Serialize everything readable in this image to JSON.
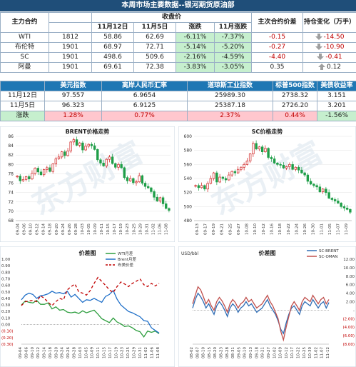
{
  "title": "本周市场主要数据--银河期货原油部",
  "table1": {
    "h_contract": "主力合约",
    "h_close": "收盘价",
    "h_d1": "11月12日",
    "h_d2": "11月5日",
    "h_chg": "涨跌",
    "h_mchg": "11月涨跌",
    "h_spread": "主次合约价差",
    "h_pos": "持仓变化（万手）",
    "rows": [
      {
        "name": "WTI",
        "month": "1812",
        "p1": "58.86",
        "p2": "62.69",
        "chg": "-6.11%",
        "mchg": "-7.37%",
        "spread": "-0.15",
        "pos": "-14.50",
        "dir": "down"
      },
      {
        "name": "布伦特",
        "month": "1901",
        "p1": "68.97",
        "p2": "72.71",
        "chg": "-5.14%",
        "mchg": "-5.20%",
        "spread": "-0.27",
        "pos": "-10.90",
        "dir": "down"
      },
      {
        "name": "SC",
        "month": "1901",
        "p1": "498.6",
        "p2": "509.6",
        "chg": "-2.16%",
        "mchg": "-4.59%",
        "spread": "-4.40",
        "pos": "-0.41",
        "dir": "down"
      },
      {
        "name": "阿曼",
        "month": "1901",
        "p1": "69.61",
        "p2": "72.38",
        "chg": "-3.83%",
        "mchg": "-3.05%",
        "spread": "0.35",
        "pos": "0.12",
        "dir": "up"
      }
    ]
  },
  "table2": {
    "headers": [
      "美元指数",
      "离岸人民币汇率",
      "道琼斯工业指数",
      "标普500指数",
      "美债收益率"
    ],
    "rows": [
      {
        "date": "11月12日",
        "v": [
          "97.557",
          "6.9654",
          "25989.30",
          "2738.32",
          "3.151"
        ]
      },
      {
        "date": "11月5日",
        "v": [
          "96.323",
          "6.9125",
          "25387.18",
          "2726.20",
          "3.201"
        ]
      },
      {
        "date": "涨跌",
        "v": [
          "1.28%",
          "0.77%",
          "2.37%",
          "0.44%",
          "-1.56%"
        ]
      }
    ]
  },
  "colors": {
    "up": "#c00000",
    "down": "#2e8b57",
    "header": "#1f4e79",
    "blue": "#1f77b4"
  },
  "chart_data": [
    {
      "type": "candlestick",
      "title": "BRENT价格走势",
      "ylim": [
        68,
        86
      ],
      "yticks": [
        68,
        70,
        72,
        74,
        76,
        78,
        80,
        82,
        84,
        86
      ],
      "xticks": [
        "09-04",
        "09-06",
        "09-10",
        "09-12",
        "09-14",
        "09-18",
        "09-20",
        "09-24",
        "09-26",
        "09-28",
        "10-03",
        "10-05",
        "10-09",
        "10-11",
        "10-15",
        "10-17",
        "10-19",
        "10-23",
        "10-25",
        "10-29",
        "10-31",
        "11-02",
        "11-06",
        "11-08"
      ],
      "close": [
        77.5,
        76.5,
        76.8,
        77.4,
        76.9,
        78.1,
        79.2,
        78.4,
        77.8,
        78.9,
        79.3,
        78.5,
        80.1,
        81.2,
        81.6,
        82.7,
        81.9,
        82.9,
        84.8,
        85.3,
        84.1,
        84.6,
        83.1,
        83.9,
        84.3,
        84.0,
        83.2,
        81.0,
        80.3,
        79.7,
        81.1,
        81.6,
        80.2,
        79.4,
        80.0,
        79.3,
        77.2,
        76.5,
        77.0,
        76.1,
        76.3,
        77.6,
        76.0,
        75.3,
        75.0,
        74.2,
        73.0,
        72.2,
        72.9,
        71.6,
        70.6,
        70.2
      ],
      "watermark": "东方财富 DONGFANGCAIFU"
    },
    {
      "type": "candlestick",
      "title": "SC价格走势",
      "ylim": [
        480,
        600
      ],
      "yticks": [
        480,
        500,
        520,
        540,
        560,
        580,
        600
      ],
      "xticks": [
        "09-13",
        "09-17",
        "09-19",
        "09-21",
        "09-25",
        "09-27",
        "10-08",
        "10-10",
        "10-12",
        "10-16",
        "10-18",
        "10-22",
        "10-24",
        "10-26",
        "10-30",
        "11-01",
        "11-05",
        "11-07",
        "11-09"
      ],
      "close": [
        530,
        527,
        530,
        525,
        533,
        540,
        548,
        535,
        542,
        540,
        538,
        545,
        550,
        548,
        553,
        556,
        560,
        565,
        575,
        590,
        582,
        585,
        578,
        583,
        570,
        568,
        562,
        560,
        559,
        555,
        557,
        560,
        553,
        556,
        552,
        548,
        545,
        536,
        532,
        530,
        528,
        521,
        525,
        520,
        512,
        510,
        508,
        505,
        500,
        498,
        496,
        492
      ],
      "watermark": "东方财富 DONGFANGCAIFU"
    },
    {
      "type": "line",
      "title": "价差图",
      "ylim": [
        -0.3,
        1.0
      ],
      "yticks": [
        "1.00",
        "0.90",
        "0.80",
        "0.70",
        "0.60",
        "0.50",
        "0.40",
        "0.30",
        "0.20",
        "0.10",
        "0.00",
        "(0.10)",
        "(0.20)",
        "(0.30)"
      ],
      "xticks": [
        "09-04",
        "09-06",
        "09-10",
        "09-12",
        "09-14",
        "09-18",
        "09-20",
        "09-24",
        "09-26",
        "09-28",
        "10-03",
        "10-05",
        "10-09",
        "10-11",
        "10-15",
        "10-17",
        "10-19",
        "10-23",
        "10-25",
        "10-29",
        "10-31",
        "11-02",
        "11-06",
        "11-08"
      ],
      "series": [
        {
          "name": "WTI月差",
          "color": "#2e9e3f",
          "dash": "",
          "values": [
            0.3,
            0.36,
            0.34,
            0.33,
            0.37,
            0.31,
            0.31,
            0.33,
            0.24,
            0.27,
            0.22,
            0.23,
            0.19,
            0.18,
            0.19,
            0.17,
            0.21,
            0.18,
            0.2,
            0.22,
            0.16,
            0.09,
            0.06,
            0.03,
            0.1,
            0.04,
            0.01,
            -0.03,
            -0.02,
            -0.05,
            -0.09,
            -0.11,
            -0.19,
            -0.1,
            -0.12,
            -0.1,
            -0.14
          ]
        },
        {
          "name": "Brent月差",
          "color": "#1f6fc8",
          "dash": "",
          "values": [
            0.38,
            0.45,
            0.48,
            0.46,
            0.4,
            0.44,
            0.45,
            0.47,
            0.51,
            0.48,
            0.49,
            0.47,
            0.51,
            0.42,
            0.46,
            0.4,
            0.34,
            0.38,
            0.37,
            0.4,
            0.37,
            0.34,
            0.43,
            0.46,
            0.52,
            0.39,
            0.3,
            0.25,
            0.2,
            0.18,
            0.15,
            0.12,
            0.06,
            0.05,
            -0.05,
            -0.09,
            -0.13
          ]
        },
        {
          "name": "布美价差",
          "color": "#c00000",
          "dash": "4,3",
          "values": [
            0.29,
            0.35,
            0.36,
            0.37,
            0.35,
            0.44,
            0.4,
            0.34,
            0.29,
            0.35,
            0.4,
            0.38,
            0.53,
            0.58,
            0.62,
            0.5,
            0.48,
            0.45,
            0.52,
            0.63,
            0.72,
            0.66,
            0.6,
            0.53,
            0.49,
            0.58,
            0.65,
            0.62,
            0.58,
            0.63,
            0.66,
            0.7,
            0.61,
            0.58,
            0.63,
            0.59,
            0.63
          ]
        }
      ]
    },
    {
      "type": "line",
      "title": "价差图",
      "ylabel": "USD/bbl",
      "ylim": [
        -8,
        12
      ],
      "yticks": [
        "12.00",
        "10.00",
        "8.00",
        "6.00",
        "4.00",
        "2.00",
        "-",
        "(2.00)",
        "(4.00)",
        "(6.00)",
        "(8.00)"
      ],
      "xticks": [
        "08-02",
        "08-07",
        "08-10",
        "08-15",
        "08-20",
        "08-23",
        "08-28",
        "08-31",
        "09-05",
        "09-10",
        "09-13",
        "09-18",
        "09-21",
        "09-27",
        "10-02",
        "10-09",
        "10-12",
        "10-17",
        "10-22",
        "10-25",
        "10-30",
        "11-02",
        "11-07",
        "11-12"
      ],
      "series": [
        {
          "name": "SC-BRENT",
          "color": "#2f6db5",
          "dash": "",
          "values": [
            0.5,
            2.5,
            4.0,
            3.2,
            2.0,
            0.5,
            1.5,
            0.2,
            -1.0,
            1.0,
            2.0,
            1.2,
            0.0,
            -1.5,
            0.5,
            1.5,
            0.8,
            -0.5,
            0.5,
            1.0,
            2.0,
            1.0,
            1.5,
            0.5,
            -0.5,
            0.0,
            0.5,
            1.5,
            2.5,
            1.0,
            0.0,
            -1.0,
            -2.5,
            -4.5,
            -5.5,
            -3.0,
            -1.0,
            0.5,
            1.0,
            0.0,
            -1.0,
            1.0,
            2.0,
            1.5,
            1.0,
            2.5,
            1.5,
            0.5,
            1.5,
            2.0,
            0.5,
            1.8
          ]
        },
        {
          "name": "SC-OMAN",
          "color": "#c0504d",
          "dash": "",
          "values": [
            1.5,
            3.5,
            5.5,
            4.8,
            3.2,
            1.5,
            2.5,
            1.0,
            0.0,
            2.0,
            3.0,
            2.2,
            1.0,
            -0.5,
            1.5,
            2.5,
            1.8,
            0.5,
            1.5,
            2.0,
            3.0,
            2.0,
            2.5,
            1.5,
            0.5,
            1.0,
            1.5,
            2.5,
            3.5,
            2.0,
            1.0,
            -0.5,
            -2.0,
            -5.0,
            -7.0,
            -4.0,
            -1.5,
            1.0,
            2.0,
            1.0,
            0.0,
            2.0,
            3.0,
            2.5,
            2.0,
            3.5,
            2.5,
            1.5,
            2.5,
            3.0,
            1.5,
            2.5
          ]
        }
      ]
    }
  ]
}
